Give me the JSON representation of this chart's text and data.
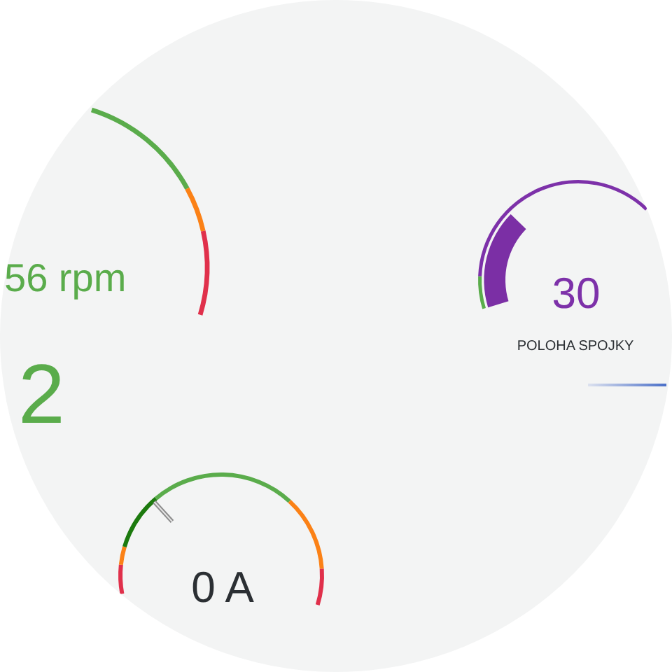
{
  "chart_data": [
    {
      "type": "other",
      "annotations": [
        "56 rpm",
        "2"
      ]
    },
    {
      "type": "other",
      "annotations": [
        "30",
        "POLOHA SPOJKY"
      ]
    },
    {
      "type": "donut",
      "categories": [
        null,
        null,
        null,
        null,
        null,
        null
      ],
      "values": [
        8,
        5,
        16,
        40,
        21,
        10
      ],
      "colors": [
        "#e0304b",
        "#fb8116",
        "#1c7a0e",
        "#5aac4b",
        "#fb8116",
        "#e0304b"
      ],
      "annotations": [
        "0 A"
      ]
    }
  ]
}
